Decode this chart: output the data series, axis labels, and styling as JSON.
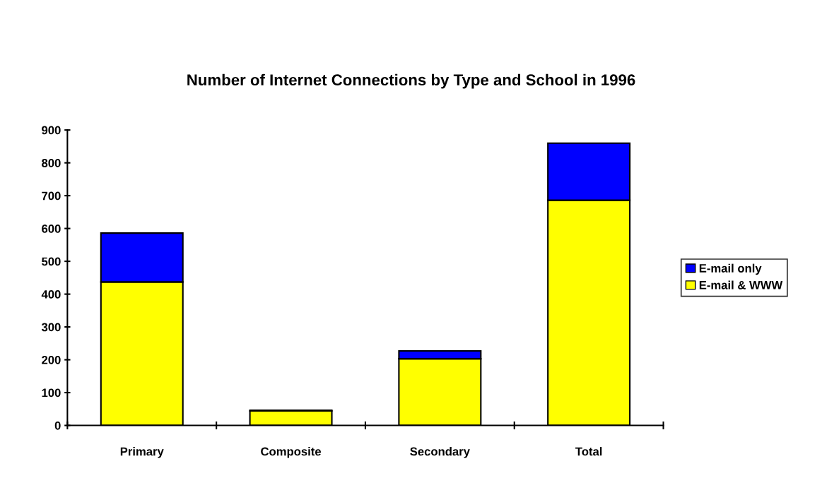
{
  "chart_data": {
    "type": "bar",
    "title": "Number of Internet Connections by Type and School in 1996",
    "categories": [
      "Primary",
      "Composite",
      "Secondary",
      "Total"
    ],
    "stacked": true,
    "series": [
      {
        "name": "E-mail & WWW",
        "color": "#ffff00",
        "values": [
          437,
          44,
          203,
          686
        ]
      },
      {
        "name": "E-mail only",
        "color": "#0000ff",
        "values": [
          149,
          2,
          24,
          174
        ]
      }
    ],
    "ylim": [
      0,
      900
    ],
    "yticks": [
      0,
      100,
      200,
      300,
      400,
      500,
      600,
      700,
      800,
      900
    ],
    "grid": false,
    "legend": "right"
  }
}
